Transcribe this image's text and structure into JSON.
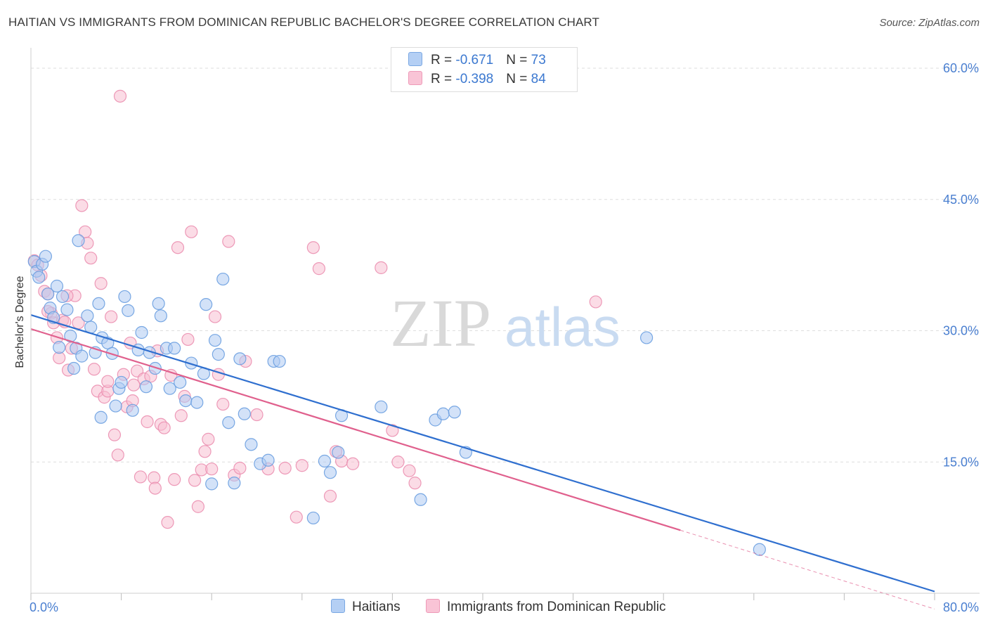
{
  "title": "HAITIAN VS IMMIGRANTS FROM DOMINICAN REPUBLIC BACHELOR'S DEGREE CORRELATION CHART",
  "source": "Source: ZipAtlas.com",
  "watermark": {
    "zip": "ZIP",
    "atlas": "atlas"
  },
  "legend": {
    "haitian": {
      "r_label": "R = ",
      "r_value": "-0.671",
      "n_label": "N = ",
      "n_value": "73"
    },
    "dominican": {
      "r_label": "R = ",
      "r_value": "-0.398",
      "n_label": "N = ",
      "n_value": "84"
    }
  },
  "bottom_legend": {
    "haitian": "Haitians",
    "dominican": "Immigrants from Dominican Republic"
  },
  "colors": {
    "haitian_fill": "#aecbf2",
    "haitian_stroke": "#6a9ee0",
    "haitian_line": "#2f6fcf",
    "dominican_fill": "#f7c0d2",
    "dominican_stroke": "#eb8fb0",
    "dominican_line": "#e0608d",
    "grid": "#dedede",
    "tick_text": "#4a7fd0"
  },
  "chart_data": {
    "type": "scatter",
    "title": "HAITIAN VS IMMIGRANTS FROM DOMINICAN REPUBLIC BACHELOR'S DEGREE CORRELATION CHART",
    "xlabel": "",
    "ylabel": "Bachelor's Degree",
    "xlim": [
      0,
      80
    ],
    "ylim": [
      0,
      60
    ],
    "x_tick_labels": [
      "0.0%",
      "80.0%"
    ],
    "y_ticks": [
      15,
      30,
      45,
      60
    ],
    "y_tick_labels": [
      "15.0%",
      "30.0%",
      "45.0%",
      "60.0%"
    ],
    "series": [
      {
        "name": "Haitians",
        "r": -0.671,
        "n": 73,
        "trend": {
          "x0": 0,
          "y0": 31.8,
          "x1": 80,
          "y1": 0.2,
          "dash_from_x": 80
        },
        "points": [
          [
            0.3,
            37.9
          ],
          [
            0.5,
            36.8
          ],
          [
            0.7,
            36.1
          ],
          [
            1.0,
            37.6
          ],
          [
            1.3,
            38.5
          ],
          [
            1.5,
            34.2
          ],
          [
            1.7,
            32.6
          ],
          [
            2.0,
            31.5
          ],
          [
            2.5,
            28.1
          ],
          [
            2.8,
            33.9
          ],
          [
            3.2,
            32.4
          ],
          [
            3.5,
            29.4
          ],
          [
            3.8,
            25.7
          ],
          [
            4.0,
            28.0
          ],
          [
            4.5,
            27.1
          ],
          [
            5.0,
            31.7
          ],
          [
            5.3,
            30.4
          ],
          [
            5.7,
            27.5
          ],
          [
            6.0,
            33.1
          ],
          [
            6.3,
            29.2
          ],
          [
            6.8,
            28.6
          ],
          [
            7.2,
            27.4
          ],
          [
            7.5,
            21.4
          ],
          [
            7.8,
            23.4
          ],
          [
            8.0,
            24.1
          ],
          [
            8.3,
            33.9
          ],
          [
            8.6,
            32.3
          ],
          [
            9.0,
            20.9
          ],
          [
            9.5,
            27.8
          ],
          [
            9.8,
            29.8
          ],
          [
            10.2,
            23.6
          ],
          [
            10.5,
            27.5
          ],
          [
            11.0,
            25.7
          ],
          [
            11.3,
            33.1
          ],
          [
            11.5,
            31.7
          ],
          [
            12.0,
            28.0
          ],
          [
            12.3,
            23.4
          ],
          [
            12.7,
            28.0
          ],
          [
            13.2,
            24.1
          ],
          [
            13.7,
            22.0
          ],
          [
            14.2,
            26.3
          ],
          [
            14.7,
            21.8
          ],
          [
            15.3,
            25.1
          ],
          [
            15.5,
            33.0
          ],
          [
            16.0,
            12.5
          ],
          [
            16.3,
            28.9
          ],
          [
            16.6,
            27.3
          ],
          [
            17.0,
            35.9
          ],
          [
            17.5,
            19.5
          ],
          [
            18.0,
            12.6
          ],
          [
            18.5,
            26.8
          ],
          [
            18.9,
            20.5
          ],
          [
            19.5,
            17.0
          ],
          [
            20.3,
            14.8
          ],
          [
            21.0,
            15.2
          ],
          [
            21.5,
            26.5
          ],
          [
            22.0,
            26.5
          ],
          [
            25.0,
            8.6
          ],
          [
            26.0,
            15.1
          ],
          [
            26.5,
            13.8
          ],
          [
            27.2,
            16.1
          ],
          [
            27.5,
            20.3
          ],
          [
            31.0,
            21.3
          ],
          [
            34.5,
            10.7
          ],
          [
            35.8,
            19.8
          ],
          [
            36.5,
            20.5
          ],
          [
            37.5,
            20.7
          ],
          [
            38.5,
            16.1
          ],
          [
            54.5,
            29.2
          ],
          [
            64.5,
            5.0
          ],
          [
            4.2,
            40.3
          ],
          [
            2.3,
            35.1
          ],
          [
            6.2,
            20.1
          ]
        ]
      },
      {
        "name": "Immigrants from Dominican Republic",
        "r": -0.398,
        "n": 84,
        "trend": {
          "x0": 0,
          "y0": 30.2,
          "x1": 57.5,
          "y1": 7.2,
          "dash_from_x": 57.5,
          "dash_to_x": 80,
          "dash_to_y": -1.8
        },
        "points": [
          [
            0.3,
            38.0
          ],
          [
            0.6,
            37.5
          ],
          [
            0.9,
            36.3
          ],
          [
            1.2,
            34.5
          ],
          [
            1.5,
            34.2
          ],
          [
            1.8,
            32.0
          ],
          [
            2.0,
            30.9
          ],
          [
            2.3,
            29.2
          ],
          [
            2.5,
            26.9
          ],
          [
            2.8,
            31.2
          ],
          [
            3.0,
            31.0
          ],
          [
            3.3,
            25.5
          ],
          [
            3.6,
            28.0
          ],
          [
            3.9,
            34.0
          ],
          [
            4.2,
            30.9
          ],
          [
            4.5,
            44.3
          ],
          [
            4.8,
            41.3
          ],
          [
            5.0,
            40.0
          ],
          [
            5.3,
            38.3
          ],
          [
            5.6,
            25.6
          ],
          [
            5.9,
            23.1
          ],
          [
            6.2,
            35.4
          ],
          [
            6.5,
            22.4
          ],
          [
            6.8,
            23.1
          ],
          [
            7.1,
            31.6
          ],
          [
            7.4,
            18.1
          ],
          [
            7.7,
            15.8
          ],
          [
            7.9,
            56.8
          ],
          [
            8.2,
            25.0
          ],
          [
            8.5,
            21.3
          ],
          [
            8.8,
            28.6
          ],
          [
            9.1,
            23.8
          ],
          [
            9.4,
            25.4
          ],
          [
            9.7,
            13.3
          ],
          [
            10.0,
            24.5
          ],
          [
            10.3,
            19.6
          ],
          [
            10.6,
            24.8
          ],
          [
            10.9,
            13.2
          ],
          [
            11.2,
            27.7
          ],
          [
            11.5,
            19.3
          ],
          [
            11.8,
            18.9
          ],
          [
            12.1,
            8.1
          ],
          [
            12.4,
            24.9
          ],
          [
            12.7,
            13.0
          ],
          [
            13.0,
            39.5
          ],
          [
            13.3,
            20.3
          ],
          [
            13.6,
            22.5
          ],
          [
            13.9,
            29.0
          ],
          [
            14.2,
            41.3
          ],
          [
            14.5,
            12.9
          ],
          [
            14.8,
            9.9
          ],
          [
            15.1,
            14.1
          ],
          [
            15.4,
            16.2
          ],
          [
            15.7,
            17.6
          ],
          [
            16.0,
            14.2
          ],
          [
            16.3,
            31.6
          ],
          [
            16.6,
            25.0
          ],
          [
            17.0,
            21.6
          ],
          [
            17.5,
            40.2
          ],
          [
            18.0,
            13.5
          ],
          [
            18.5,
            14.3
          ],
          [
            19.0,
            26.5
          ],
          [
            20.0,
            20.4
          ],
          [
            21.0,
            14.2
          ],
          [
            22.5,
            14.3
          ],
          [
            23.5,
            8.7
          ],
          [
            24.0,
            14.6
          ],
          [
            25.0,
            39.5
          ],
          [
            25.5,
            37.1
          ],
          [
            26.5,
            11.1
          ],
          [
            27.0,
            16.2
          ],
          [
            27.5,
            15.1
          ],
          [
            28.5,
            14.8
          ],
          [
            31.0,
            37.2
          ],
          [
            32.0,
            18.6
          ],
          [
            32.5,
            15.0
          ],
          [
            33.5,
            14.0
          ],
          [
            34.0,
            12.6
          ],
          [
            50.0,
            33.3
          ],
          [
            1.5,
            32.2
          ],
          [
            3.2,
            34.0
          ],
          [
            6.8,
            24.2
          ],
          [
            9.0,
            22.0
          ],
          [
            11.0,
            12.0
          ]
        ]
      }
    ]
  }
}
